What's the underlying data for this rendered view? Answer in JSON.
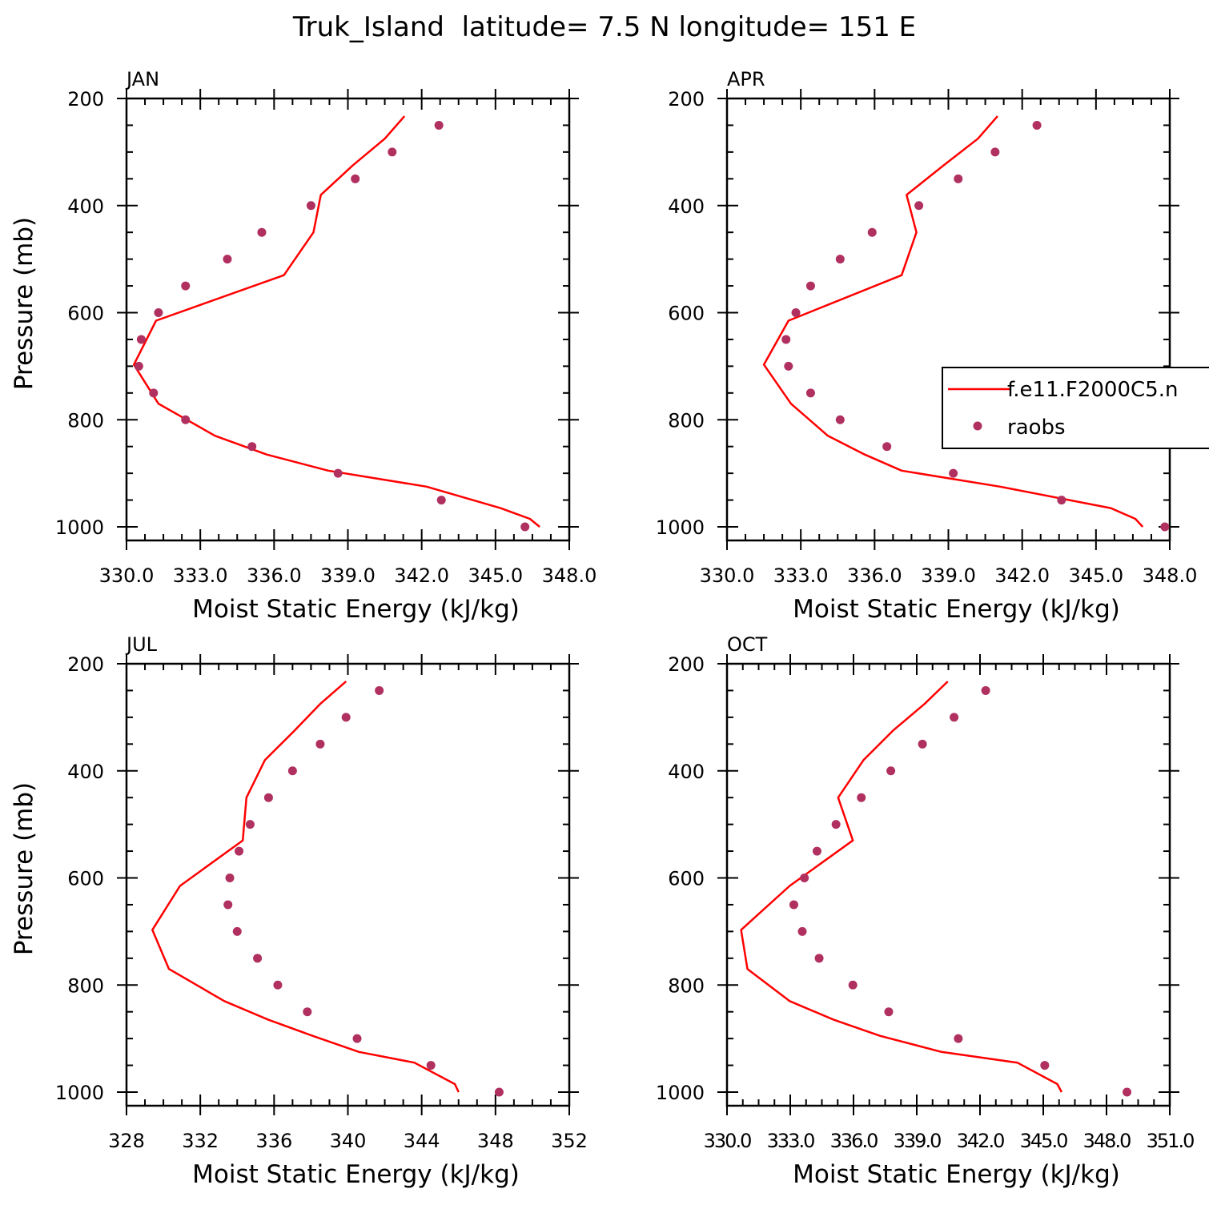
{
  "title": "Truk_Island  latitude= 7.5 N longitude= 151 E",
  "legend": {
    "model_label": "f.e11.F2000C5.n",
    "obs_label": "raobs"
  },
  "colors": {
    "model": "#ff0000",
    "obs": "#b03060",
    "axes": "#000000"
  },
  "chart_data": [
    {
      "type": "line",
      "name": "JAN",
      "xlabel": "Moist Static Energy (kJ/kg)",
      "ylabel": "Pressure (mb)",
      "xlim": [
        330,
        348
      ],
      "ylim": [
        200,
        1000
      ],
      "x_ticks": [
        330,
        333,
        336,
        339,
        342,
        345,
        348
      ],
      "x_tick_labels": [
        "330.0",
        "333.0",
        "336.0",
        "339.0",
        "342.0",
        "345.0",
        "348.0"
      ],
      "y_ticks": [
        200,
        400,
        600,
        800,
        1000
      ],
      "y_tick_labels": [
        "200",
        "400",
        "600",
        "800",
        "1000"
      ],
      "model": {
        "x": [
          341.3,
          340.5,
          339.2,
          337.9,
          337.6,
          336.4,
          331.2,
          330.3,
          331.3,
          333.6,
          335.7,
          338.2,
          342.2,
          345.2,
          346.4,
          346.8
        ],
        "y": [
          233,
          275,
          325,
          380,
          450,
          530,
          615,
          697,
          770,
          830,
          865,
          895,
          925,
          965,
          985,
          1000
        ]
      },
      "obs": {
        "x": [
          342.7,
          340.8,
          339.3,
          337.5,
          335.5,
          334.1,
          332.4,
          331.3,
          330.6,
          330.5,
          331.1,
          332.4,
          335.1,
          338.6,
          342.8,
          346.2
        ],
        "y": [
          250,
          300,
          350,
          400,
          450,
          500,
          550,
          600,
          650,
          700,
          750,
          800,
          850,
          900,
          950,
          1000
        ]
      }
    },
    {
      "type": "line",
      "name": "APR",
      "xlabel": "Moist Static Energy (kJ/kg)",
      "ylabel": "",
      "xlim": [
        330,
        348
      ],
      "ylim": [
        200,
        1000
      ],
      "x_ticks": [
        330,
        333,
        336,
        339,
        342,
        345,
        348
      ],
      "x_tick_labels": [
        "330.0",
        "333.0",
        "336.0",
        "339.0",
        "342.0",
        "345.0",
        "348.0"
      ],
      "y_ticks": [
        200,
        400,
        600,
        800,
        1000
      ],
      "y_tick_labels": [
        "200",
        "400",
        "600",
        "800",
        "1000"
      ],
      "model": {
        "x": [
          341.0,
          340.2,
          338.8,
          337.3,
          337.7,
          337.1,
          332.5,
          331.5,
          332.6,
          334.1,
          335.6,
          337.1,
          341.1,
          345.6,
          346.6,
          346.9
        ],
        "y": [
          233,
          275,
          325,
          380,
          450,
          530,
          615,
          697,
          770,
          830,
          865,
          895,
          925,
          965,
          985,
          1000
        ]
      },
      "obs": {
        "x": [
          342.6,
          340.9,
          339.4,
          337.8,
          335.9,
          334.6,
          333.4,
          332.8,
          332.4,
          332.5,
          333.4,
          334.6,
          336.5,
          339.2,
          343.6,
          347.8
        ],
        "y": [
          250,
          300,
          350,
          400,
          450,
          500,
          550,
          600,
          650,
          700,
          750,
          800,
          850,
          900,
          950,
          1000
        ]
      }
    },
    {
      "type": "line",
      "name": "JUL",
      "xlabel": "Moist Static Energy (kJ/kg)",
      "ylabel": "Pressure (mb)",
      "xlim": [
        328,
        352
      ],
      "ylim": [
        200,
        1000
      ],
      "x_ticks": [
        328,
        332,
        336,
        340,
        344,
        348,
        352
      ],
      "x_tick_labels": [
        "328",
        "332",
        "336",
        "340",
        "344",
        "348",
        "352"
      ],
      "y_ticks": [
        200,
        400,
        600,
        800,
        1000
      ],
      "y_tick_labels": [
        "200",
        "400",
        "600",
        "800",
        "1000"
      ],
      "model": {
        "x": [
          339.9,
          338.5,
          337.1,
          335.5,
          334.5,
          334.3,
          330.9,
          329.4,
          330.3,
          333.3,
          335.7,
          338.1,
          340.6,
          343.6,
          345.8,
          346.0
        ],
        "y": [
          233,
          275,
          325,
          380,
          450,
          530,
          615,
          697,
          770,
          830,
          865,
          895,
          925,
          945,
          985,
          1000
        ]
      },
      "obs": {
        "x": [
          341.7,
          339.9,
          338.5,
          337.0,
          335.7,
          334.7,
          334.1,
          333.6,
          333.5,
          334.0,
          335.1,
          336.2,
          337.8,
          340.5,
          344.5,
          348.2
        ],
        "y": [
          250,
          300,
          350,
          400,
          450,
          500,
          550,
          600,
          650,
          700,
          750,
          800,
          850,
          900,
          950,
          1000
        ]
      }
    },
    {
      "type": "line",
      "name": "OCT",
      "xlabel": "Moist Static Energy (kJ/kg)",
      "ylabel": "",
      "xlim": [
        330.03,
        351.03
      ],
      "ylim": [
        200,
        1000
      ],
      "x_ticks": [
        330.03,
        333.03,
        336.03,
        339.03,
        342.03,
        345.03,
        348.03,
        351.03
      ],
      "x_tick_labels": [
        "330.0",
        "333.0",
        "336.0",
        "339.0",
        "342.0",
        "345.0",
        "348.0",
        "351.0"
      ],
      "y_ticks": [
        200,
        400,
        600,
        800,
        1000
      ],
      "y_tick_labels": [
        "200",
        "400",
        "600",
        "800",
        "1000"
      ],
      "model": {
        "x": [
          340.5,
          339.4,
          337.9,
          336.5,
          335.3,
          336.0,
          333.0,
          330.7,
          331.0,
          333.0,
          335.1,
          337.3,
          340.2,
          343.8,
          345.7,
          345.9
        ],
        "y": [
          233,
          275,
          325,
          380,
          450,
          530,
          615,
          697,
          770,
          830,
          865,
          895,
          925,
          945,
          985,
          1000
        ]
      },
      "obs": {
        "x": [
          342.3,
          340.8,
          339.3,
          337.8,
          336.4,
          335.2,
          334.3,
          333.7,
          333.2,
          333.6,
          334.4,
          336.0,
          337.7,
          341.0,
          345.1,
          349.0
        ],
        "y": [
          250,
          300,
          350,
          400,
          450,
          500,
          550,
          600,
          650,
          700,
          750,
          800,
          850,
          900,
          950,
          1000
        ]
      }
    }
  ]
}
